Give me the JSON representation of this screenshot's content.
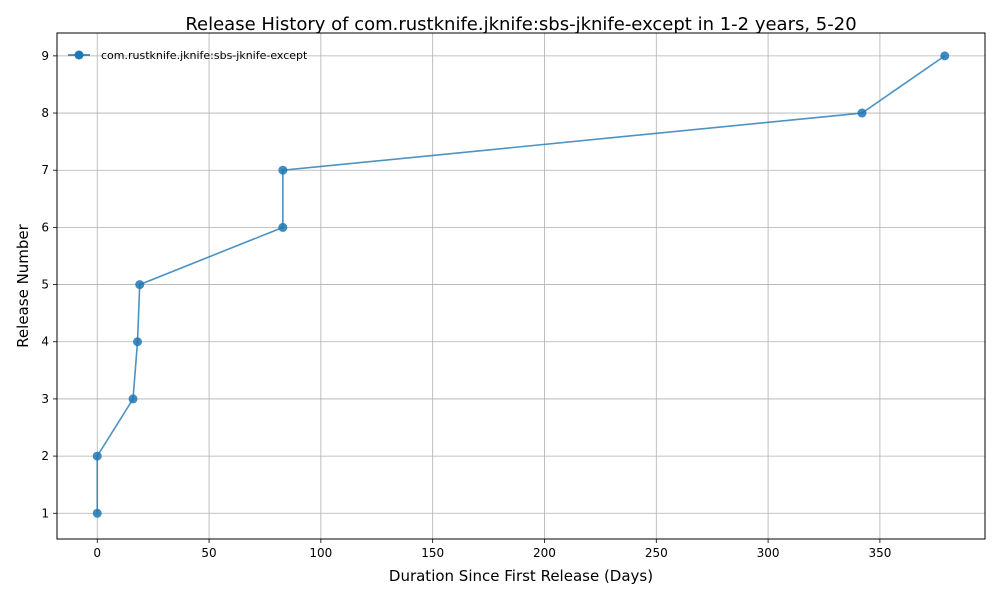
{
  "chart_data": {
    "type": "line",
    "title": "Release History of com.rustknife.jknife:sbs-jknife-except in 1-2 years, 5-20",
    "xlabel": "Duration Since First Release (Days)",
    "ylabel": "Release Number",
    "xlim": [
      -18,
      397
    ],
    "ylim": [
      0.55,
      9.4
    ],
    "xticks": [
      0,
      50,
      100,
      150,
      200,
      250,
      300,
      350
    ],
    "yticks": [
      1,
      2,
      3,
      4,
      5,
      6,
      7,
      8,
      9
    ],
    "grid": true,
    "legend_position": "upper-left",
    "series": [
      {
        "name": "com.rustknife.jknife:sbs-jknife-except",
        "color": "#1f77b4",
        "marker": "circle",
        "x": [
          0,
          0,
          16,
          18,
          19,
          83,
          83,
          342,
          379
        ],
        "y": [
          1,
          2,
          3,
          4,
          5,
          6,
          7,
          8,
          9
        ]
      }
    ]
  }
}
